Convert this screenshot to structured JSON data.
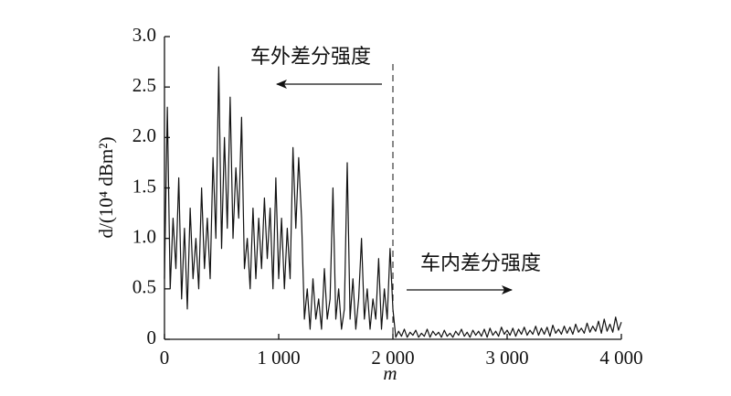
{
  "chart_data": {
    "type": "line",
    "xlabel": "m",
    "ylabel": "d/(10⁴ dBm²)",
    "annotations": [
      "车外差分强度",
      "车内差分强度"
    ],
    "xlim": [
      0,
      4000
    ],
    "ylim": [
      0,
      3.0
    ],
    "xticks": [
      0,
      {
        "value": 1000,
        "label": "1 000"
      },
      {
        "value": 2000,
        "label": "2 000"
      },
      {
        "value": 3000,
        "label": "3 000"
      },
      {
        "value": 4000,
        "label": "4 000"
      }
    ],
    "yticks": [
      0,
      0.5,
      {
        "value": 1.0,
        "label": "1.0"
      },
      1.5,
      {
        "value": 2.0,
        "label": "2.0"
      },
      2.5,
      {
        "value": 3.0,
        "label": "3.0"
      }
    ],
    "series": [
      {
        "color": "#111111",
        "x": [
          0,
          25,
          50,
          75,
          100,
          125,
          150,
          175,
          200,
          225,
          250,
          275,
          300,
          325,
          350,
          375,
          400,
          425,
          450,
          475,
          500,
          525,
          550,
          575,
          600,
          625,
          650,
          675,
          700,
          725,
          750,
          775,
          800,
          825,
          850,
          875,
          900,
          925,
          950,
          975,
          1000,
          1025,
          1050,
          1075,
          1100,
          1125,
          1150,
          1175,
          1200,
          1225,
          1250,
          1275,
          1300,
          1325,
          1350,
          1375,
          1400,
          1425,
          1450,
          1475,
          1500,
          1525,
          1550,
          1575,
          1600,
          1625,
          1650,
          1675,
          1700,
          1725,
          1750,
          1775,
          1800,
          1825,
          1850,
          1875,
          1900,
          1925,
          1950,
          1975,
          2000,
          2025,
          2050,
          2075,
          2100,
          2125,
          2150,
          2175,
          2200,
          2225,
          2250,
          2275,
          2300,
          2325,
          2350,
          2375,
          2400,
          2425,
          2450,
          2475,
          2500,
          2525,
          2550,
          2575,
          2600,
          2625,
          2650,
          2675,
          2700,
          2725,
          2750,
          2775,
          2800,
          2825,
          2850,
          2875,
          2900,
          2925,
          2950,
          2975,
          3000,
          3025,
          3050,
          3075,
          3100,
          3125,
          3150,
          3175,
          3200,
          3225,
          3250,
          3275,
          3300,
          3325,
          3350,
          3375,
          3400,
          3425,
          3450,
          3475,
          3500,
          3525,
          3550,
          3575,
          3600,
          3625,
          3650,
          3675,
          3700,
          3725,
          3750,
          3775,
          3800,
          3825,
          3850,
          3875,
          3900,
          3925,
          3950,
          3975,
          4000
        ],
        "values": [
          0.6,
          2.3,
          0.5,
          1.2,
          0.7,
          1.6,
          0.4,
          1.1,
          0.3,
          1.3,
          0.6,
          1.0,
          0.5,
          1.5,
          0.7,
          1.2,
          0.6,
          1.8,
          1.0,
          2.7,
          0.9,
          2.0,
          1.1,
          2.4,
          1.0,
          1.7,
          1.2,
          2.2,
          0.7,
          1.0,
          0.5,
          1.3,
          0.6,
          1.2,
          0.7,
          1.4,
          0.8,
          1.3,
          0.5,
          1.6,
          0.6,
          1.2,
          0.5,
          1.1,
          0.6,
          1.9,
          1.1,
          1.8,
          1.2,
          0.2,
          0.5,
          0.1,
          0.6,
          0.2,
          0.4,
          0.1,
          0.7,
          0.2,
          0.4,
          1.5,
          0.2,
          0.5,
          0.1,
          0.3,
          1.75,
          0.2,
          0.6,
          0.1,
          0.4,
          1.0,
          0.2,
          0.5,
          0.1,
          0.4,
          0.2,
          0.8,
          0.1,
          0.5,
          0.2,
          0.9,
          0.3,
          0.02,
          0.08,
          0.03,
          0.1,
          0.02,
          0.07,
          0.04,
          0.09,
          0.02,
          0.06,
          0.03,
          0.1,
          0.02,
          0.08,
          0.04,
          0.07,
          0.02,
          0.09,
          0.03,
          0.06,
          0.02,
          0.08,
          0.04,
          0.1,
          0.03,
          0.07,
          0.02,
          0.09,
          0.04,
          0.08,
          0.03,
          0.1,
          0.02,
          0.11,
          0.04,
          0.08,
          0.03,
          0.12,
          0.05,
          0.09,
          0.04,
          0.11,
          0.03,
          0.1,
          0.05,
          0.12,
          0.04,
          0.09,
          0.05,
          0.13,
          0.04,
          0.11,
          0.05,
          0.12,
          0.03,
          0.14,
          0.06,
          0.1,
          0.05,
          0.13,
          0.06,
          0.12,
          0.05,
          0.15,
          0.07,
          0.11,
          0.06,
          0.16,
          0.07,
          0.13,
          0.08,
          0.18,
          0.06,
          0.2,
          0.08,
          0.15,
          0.07,
          0.22,
          0.09,
          0.17
        ]
      }
    ]
  }
}
